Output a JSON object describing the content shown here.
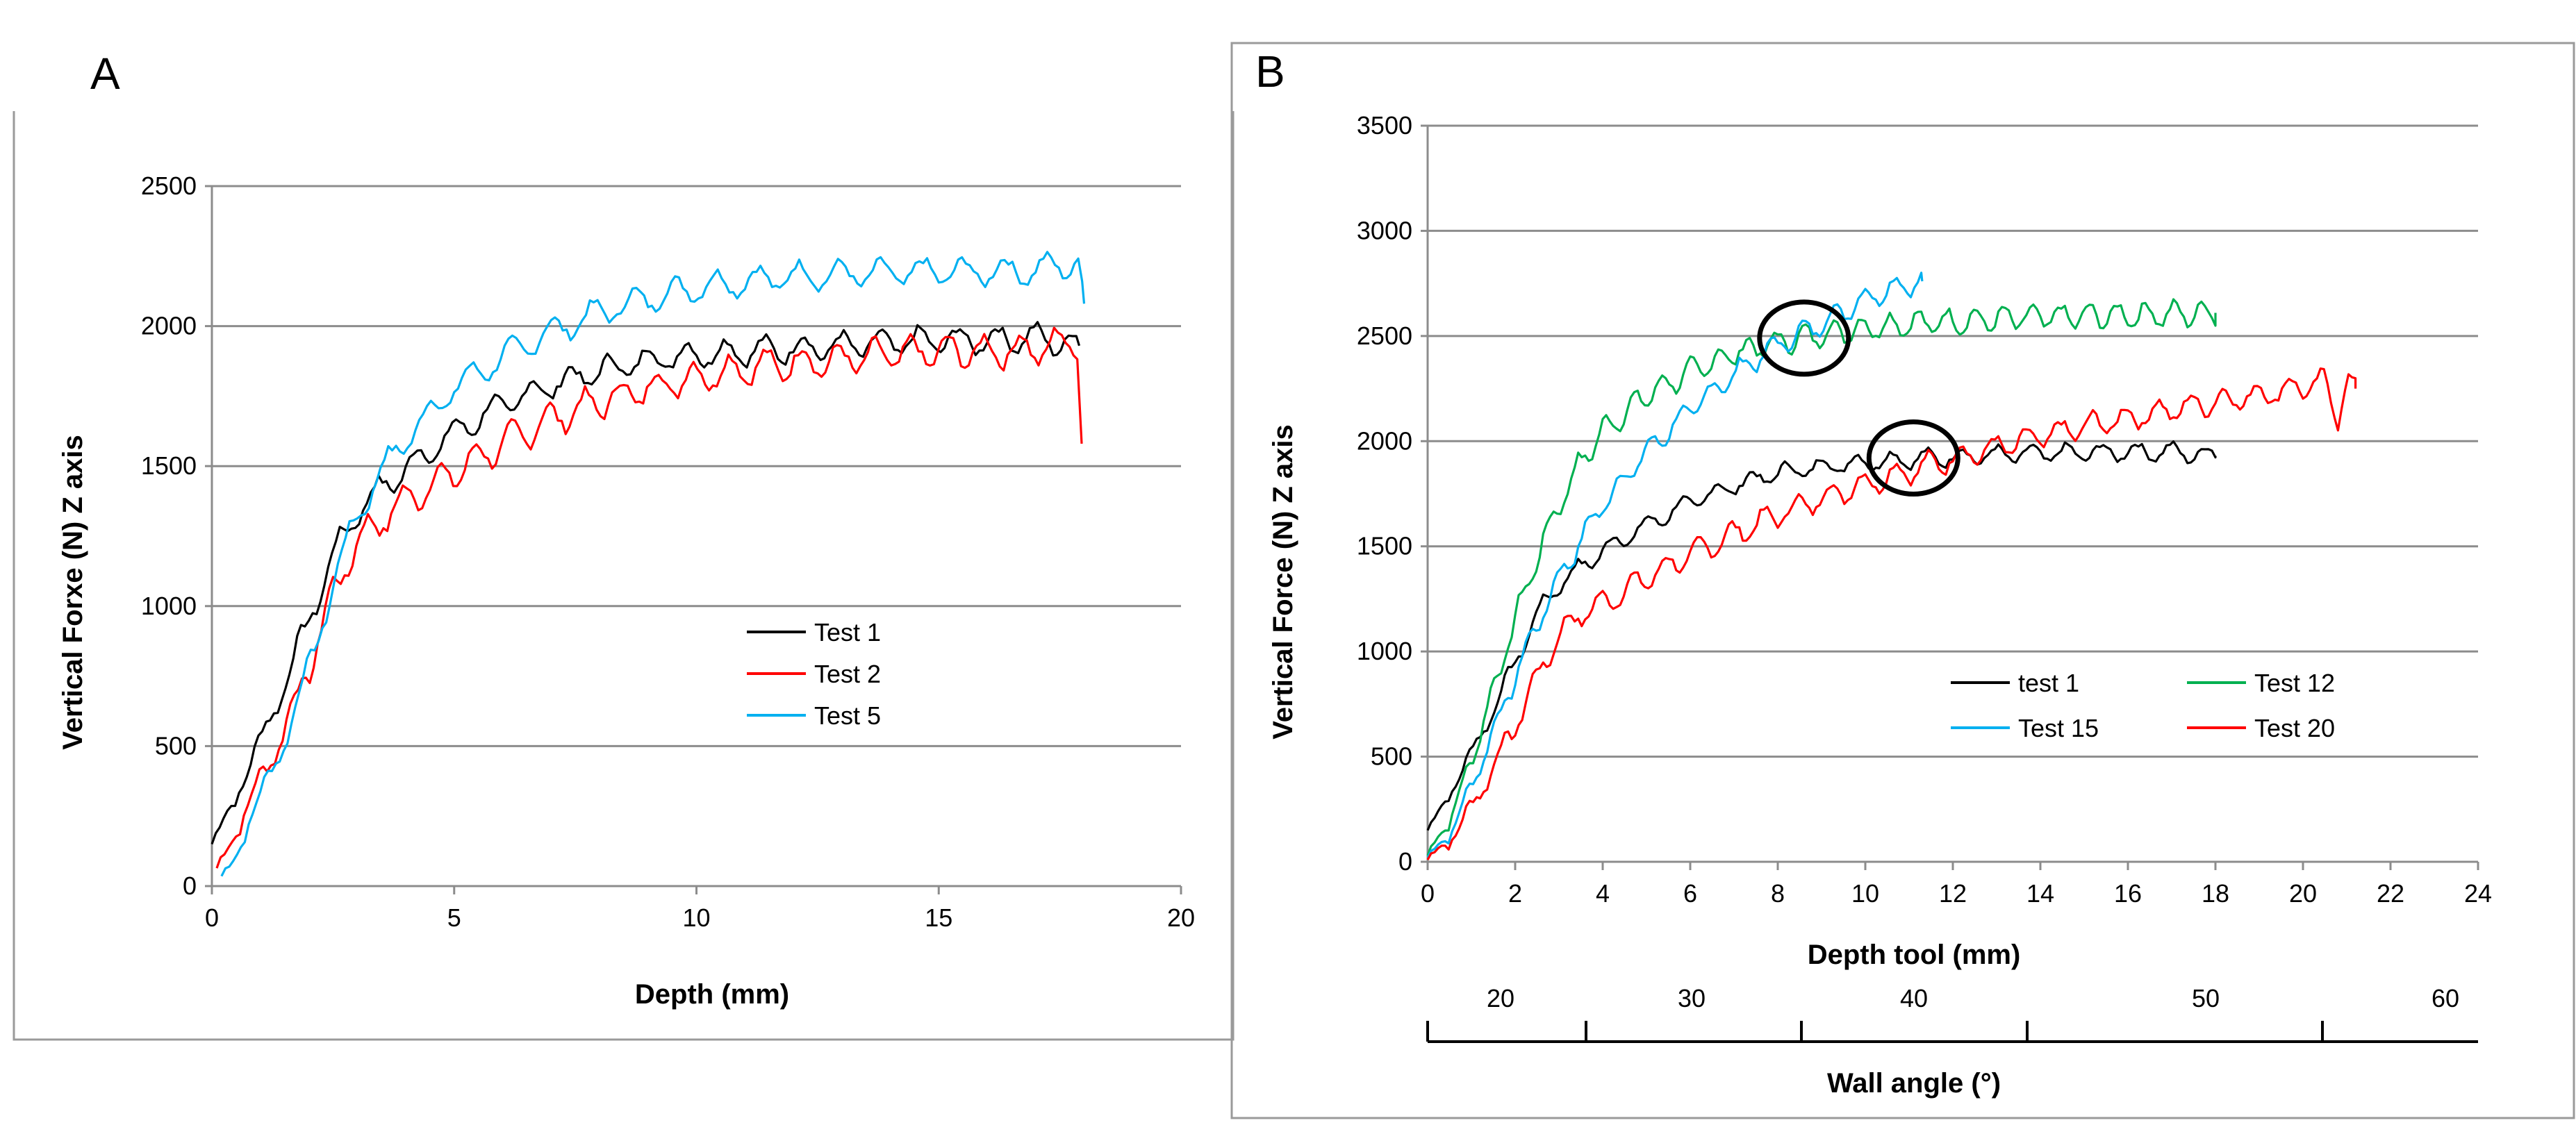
{
  "chart_data": [
    {
      "panel_label": "A",
      "type": "line",
      "title": "",
      "xlabel": "Depth (mm)",
      "ylabel": "Vertical Forxe (N) Z axis",
      "xlim": [
        0,
        20
      ],
      "ylim": [
        0,
        2500
      ],
      "x_ticks": [
        "0",
        "5",
        "10",
        "15",
        "20"
      ],
      "y_ticks": [
        "0",
        "500",
        "1000",
        "1500",
        "2000",
        "2500"
      ],
      "grid": true,
      "legend_position": "center-right",
      "series": [
        {
          "name": "Test 1",
          "color": "#000000",
          "x": [
            0,
            0.5,
            1,
            1.5,
            2,
            2.5,
            3,
            3.5,
            4,
            5,
            6,
            7,
            8,
            9,
            10,
            11,
            12,
            13,
            14,
            15,
            16,
            17,
            17.9
          ],
          "y": [
            150,
            320,
            520,
            720,
            950,
            1180,
            1340,
            1420,
            1490,
            1620,
            1720,
            1790,
            1840,
            1880,
            1900,
            1910,
            1920,
            1930,
            1940,
            1950,
            1950,
            1960,
            1930
          ]
        },
        {
          "name": "Test 2",
          "color": "#ff0000",
          "x": [
            0.1,
            0.5,
            1,
            1.5,
            2,
            2.5,
            3,
            3.5,
            4,
            5,
            6,
            7,
            8,
            9,
            10,
            11,
            12,
            13,
            14,
            15,
            16,
            17,
            17.9,
            17.95
          ],
          "y": [
            50,
            200,
            380,
            560,
            780,
            1050,
            1230,
            1310,
            1380,
            1480,
            1580,
            1670,
            1730,
            1780,
            1820,
            1850,
            1870,
            1880,
            1900,
            1910,
            1910,
            1920,
            1950,
            1580
          ]
        },
        {
          "name": "Test 5",
          "color": "#00b0f0",
          "x": [
            0.2,
            0.5,
            1,
            1.5,
            2,
            2.5,
            3,
            3.5,
            4,
            5,
            6,
            7,
            8,
            9,
            10,
            11,
            12,
            13,
            14,
            15,
            16,
            17,
            17.9,
            18
          ],
          "y": [
            20,
            120,
            320,
            520,
            780,
            1080,
            1330,
            1480,
            1600,
            1780,
            1890,
            1980,
            2050,
            2100,
            2140,
            2160,
            2180,
            2185,
            2190,
            2195,
            2195,
            2200,
            2230,
            2080
          ]
        }
      ]
    },
    {
      "panel_label": "B",
      "type": "line",
      "title": "",
      "xlabel": "Depth tool (mm)",
      "ylabel": "Vertical Force (N) Z axis",
      "xlim": [
        0,
        24
      ],
      "ylim": [
        0,
        3500
      ],
      "x_ticks": [
        "0",
        "2",
        "4",
        "6",
        "8",
        "10",
        "12",
        "14",
        "16",
        "18",
        "20",
        "22",
        "24"
      ],
      "y_ticks": [
        "0",
        "500",
        "1000",
        "1500",
        "2000",
        "2500",
        "3000",
        "3500"
      ],
      "grid": true,
      "legend_position": "lower-right",
      "series": [
        {
          "name": "test 1",
          "color": "#000000",
          "x": [
            0,
            0.5,
            1,
            1.5,
            2,
            2.5,
            3,
            4,
            5,
            6,
            7,
            8,
            9,
            10,
            11,
            12,
            13,
            14,
            15,
            16,
            17,
            18
          ],
          "y": [
            150,
            320,
            520,
            720,
            950,
            1180,
            1320,
            1480,
            1600,
            1710,
            1790,
            1850,
            1880,
            1900,
            1915,
            1925,
            1935,
            1940,
            1945,
            1950,
            1950,
            1930
          ]
        },
        {
          "name": "Test 12",
          "color": "#00b050",
          "x": [
            0,
            0.5,
            1,
            1.5,
            2,
            2.5,
            3,
            3.5,
            4,
            5,
            6,
            7,
            8,
            9,
            10,
            11,
            12,
            13,
            14,
            15,
            16,
            17,
            18
          ],
          "y": [
            30,
            200,
            480,
            820,
            1150,
            1450,
            1700,
            1900,
            2050,
            2220,
            2330,
            2420,
            2470,
            2510,
            2540,
            2560,
            2570,
            2580,
            2590,
            2595,
            2600,
            2605,
            2610
          ]
        },
        {
          "name": "Test 15",
          "color": "#00b0f0",
          "x": [
            0,
            0.5,
            1,
            1.5,
            2,
            2.5,
            3,
            3.5,
            4,
            5,
            6,
            7,
            8,
            9,
            9.5,
            10,
            10.5,
            11,
            11.3
          ],
          "y": [
            20,
            130,
            360,
            620,
            880,
            1130,
            1350,
            1530,
            1700,
            1950,
            2150,
            2320,
            2460,
            2560,
            2620,
            2680,
            2720,
            2750,
            2760
          ]
        },
        {
          "name": "Test 20",
          "color": "#ff0000",
          "x": [
            0,
            0.5,
            1,
            1.5,
            2,
            2.5,
            3,
            3.5,
            4,
            5,
            6,
            7,
            8,
            9,
            10,
            11,
            12,
            13,
            14,
            15,
            16,
            17,
            18,
            19,
            20,
            20.5,
            20.8,
            21,
            21.2
          ],
          "y": [
            10,
            100,
            260,
            450,
            650,
            880,
            1080,
            1180,
            1230,
            1350,
            1460,
            1560,
            1650,
            1730,
            1800,
            1860,
            1920,
            1970,
            2020,
            2070,
            2110,
            2150,
            2190,
            2220,
            2260,
            2280,
            2120,
            2290,
            2250
          ]
        }
      ],
      "annotations": [
        {
          "shape": "circle",
          "x": 8.6,
          "y": 2490
        },
        {
          "shape": "circle",
          "x": 11.1,
          "y": 1920
        }
      ],
      "secondary_axis": {
        "label": "Wall angle (°)",
        "tick_labels": [
          "20",
          "30",
          "40",
          "50",
          "60"
        ]
      }
    }
  ]
}
